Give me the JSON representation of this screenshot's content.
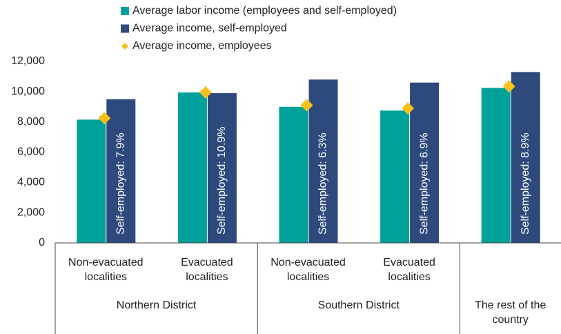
{
  "chart_data": {
    "type": "bar",
    "categories": [
      "Non-evacuated localities",
      "Evacuated localities",
      "Non-evacuated localities",
      "Evacuated localities",
      null
    ],
    "category_groups": [
      "Northern District",
      "Northern District",
      "Southern District",
      "Southern District",
      "The rest of the country"
    ],
    "series": [
      {
        "name": "Average labor income (employees and self-employed)",
        "color": "#00a19a",
        "values": [
          8150,
          9950,
          9000,
          8750,
          10250
        ]
      },
      {
        "name": "Average income, self-employed",
        "color": "#2e4a7d",
        "values": [
          9500,
          9900,
          10800,
          10600,
          11300
        ]
      },
      {
        "name": "Average income, employees",
        "color": "#f7c11c",
        "marker": "diamond",
        "values": [
          8250,
          9950,
          9100,
          8900,
          10350
        ]
      }
    ],
    "annotations": [
      "Self-employed: 7.9%",
      "Self-employed: 10.9%",
      "Self-employed: 6.3%",
      "Self-employed: 6.9%",
      "Self-employed: 8.9%"
    ],
    "ylim": [
      0,
      12000
    ],
    "yticks": [
      0,
      {
        "value": 2000,
        "label": "2,000"
      },
      {
        "value": 4000,
        "label": "4,000"
      },
      {
        "value": 6000,
        "label": "6,000"
      },
      {
        "value": 8000,
        "label": "8,000"
      },
      {
        "value": 10000,
        "label": "10,000"
      },
      {
        "value": 12000,
        "label": "12,000"
      }
    ],
    "grid": false,
    "legend": "top"
  }
}
